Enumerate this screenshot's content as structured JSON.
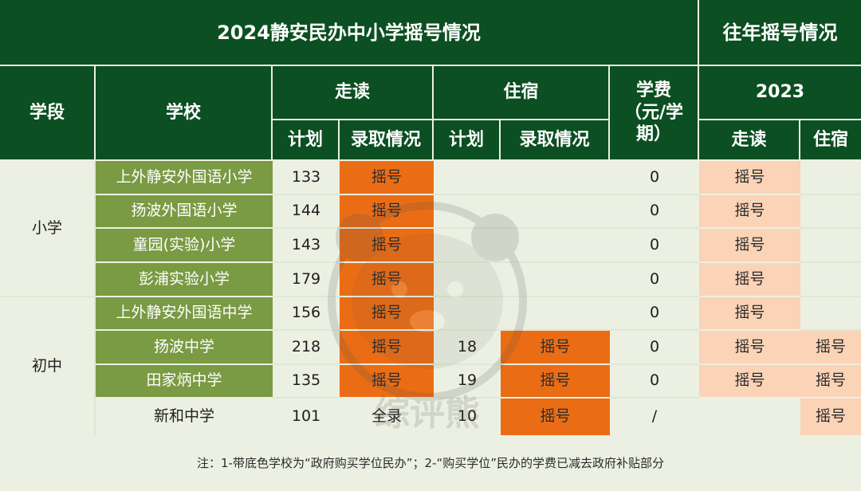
{
  "title": "2024静安民办中小学摇号情况",
  "prev_title": "往年摇号情况",
  "headers": {
    "stage": "学段",
    "school": "学校",
    "day": "走读",
    "board": "住宿",
    "fee": "学费（元/学期）",
    "plan": "计划",
    "admit": "录取情况",
    "year": "2023",
    "prev_day": "走读",
    "prev_board": "住宿"
  },
  "stages": {
    "primary": "小学",
    "middle": "初中"
  },
  "rows": [
    {
      "school": "上外静安外国语小学",
      "day_plan": "133",
      "day_admit": "摇号",
      "board_plan": "",
      "board_admit": "",
      "fee": "0",
      "prev_day": "摇号",
      "prev_board": ""
    },
    {
      "school": "扬波外国语小学",
      "day_plan": "144",
      "day_admit": "摇号",
      "board_plan": "",
      "board_admit": "",
      "fee": "0",
      "prev_day": "摇号",
      "prev_board": ""
    },
    {
      "school": "童园(实验)小学",
      "day_plan": "143",
      "day_admit": "摇号",
      "board_plan": "",
      "board_admit": "",
      "fee": "0",
      "prev_day": "摇号",
      "prev_board": ""
    },
    {
      "school": "彭浦实验小学",
      "day_plan": "179",
      "day_admit": "摇号",
      "board_plan": "",
      "board_admit": "",
      "fee": "0",
      "prev_day": "摇号",
      "prev_board": ""
    },
    {
      "school": "上外静安外国语中学",
      "day_plan": "156",
      "day_admit": "摇号",
      "board_plan": "",
      "board_admit": "",
      "fee": "0",
      "prev_day": "摇号",
      "prev_board": ""
    },
    {
      "school": "扬波中学",
      "day_plan": "218",
      "day_admit": "摇号",
      "board_plan": "18",
      "board_admit": "摇号",
      "fee": "0",
      "prev_day": "摇号",
      "prev_board": "摇号"
    },
    {
      "school": "田家炳中学",
      "day_plan": "135",
      "day_admit": "摇号",
      "board_plan": "19",
      "board_admit": "摇号",
      "fee": "0",
      "prev_day": "摇号",
      "prev_board": "摇号"
    },
    {
      "school": "新和中学",
      "day_plan": "101",
      "day_admit": "全录",
      "board_plan": "10",
      "board_admit": "摇号",
      "fee": "/",
      "prev_day": "",
      "prev_board": "摇号"
    }
  ],
  "note": "注：1-带底色学校为“政府购买学位民办”；2-“购买学位”民办的学费已减去政府补贴部分",
  "watermark": "综评熊",
  "colors": {
    "header": "#0c4f22",
    "school_fill": "#7a9a43",
    "lottery": "#ea6d16",
    "prev": "#fbd3b6",
    "background": "#ecf0e2"
  }
}
